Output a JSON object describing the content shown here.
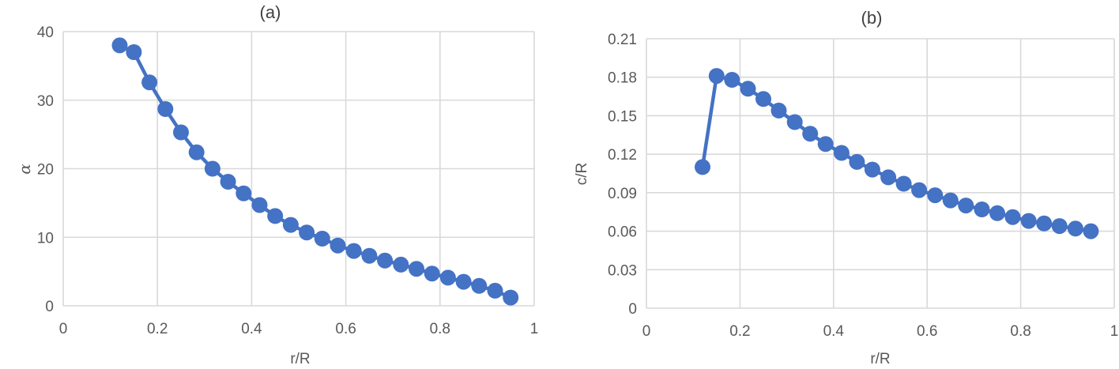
{
  "chart_data": [
    {
      "type": "line",
      "title": "(a)",
      "xlabel": "r/R",
      "ylabel": "α",
      "xlim": [
        0,
        1
      ],
      "ylim": [
        0,
        40
      ],
      "xticks": [
        "0",
        "0.2",
        "0.4",
        "0.6",
        "0.8",
        "1"
      ],
      "yticks": [
        "0",
        "10",
        "20",
        "30",
        "40"
      ],
      "grid": true,
      "marker": "circle",
      "color": "#4472C4",
      "series": [
        {
          "x": [
            0.12,
            0.15,
            0.183,
            0.217,
            0.25,
            0.283,
            0.317,
            0.35,
            0.383,
            0.417,
            0.45,
            0.483,
            0.517,
            0.55,
            0.583,
            0.617,
            0.65,
            0.683,
            0.717,
            0.75,
            0.783,
            0.817,
            0.85,
            0.883,
            0.917,
            0.95
          ],
          "y": [
            38,
            37,
            32.6,
            28.7,
            25.3,
            22.4,
            20,
            18.1,
            16.4,
            14.7,
            13.1,
            11.8,
            10.7,
            9.8,
            8.8,
            8,
            7.3,
            6.6,
            6,
            5.4,
            4.7,
            4.1,
            3.5,
            2.9,
            2.2,
            1.2
          ]
        }
      ]
    },
    {
      "type": "line",
      "title": "(b)",
      "xlabel": "r/R",
      "ylabel": "c/R",
      "xlim": [
        0,
        1
      ],
      "ylim": [
        0,
        0.21
      ],
      "xticks": [
        "0",
        "0.2",
        "0.4",
        "0.6",
        "0.8",
        "1"
      ],
      "yticks": [
        "0",
        "0.03",
        "0.06",
        "0.09",
        "0.12",
        "0.15",
        "0.18",
        "0.21"
      ],
      "grid": true,
      "marker": "circle",
      "color": "#4472C4",
      "series": [
        {
          "x": [
            0.12,
            0.15,
            0.183,
            0.217,
            0.25,
            0.283,
            0.317,
            0.35,
            0.383,
            0.417,
            0.45,
            0.483,
            0.517,
            0.55,
            0.583,
            0.617,
            0.65,
            0.683,
            0.717,
            0.75,
            0.783,
            0.817,
            0.85,
            0.883,
            0.917,
            0.95
          ],
          "y": [
            0.11,
            0.181,
            0.178,
            0.171,
            0.163,
            0.154,
            0.145,
            0.136,
            0.128,
            0.121,
            0.114,
            0.108,
            0.102,
            0.097,
            0.092,
            0.088,
            0.084,
            0.08,
            0.077,
            0.074,
            0.071,
            0.068,
            0.066,
            0.064,
            0.062,
            0.06
          ]
        }
      ]
    }
  ]
}
